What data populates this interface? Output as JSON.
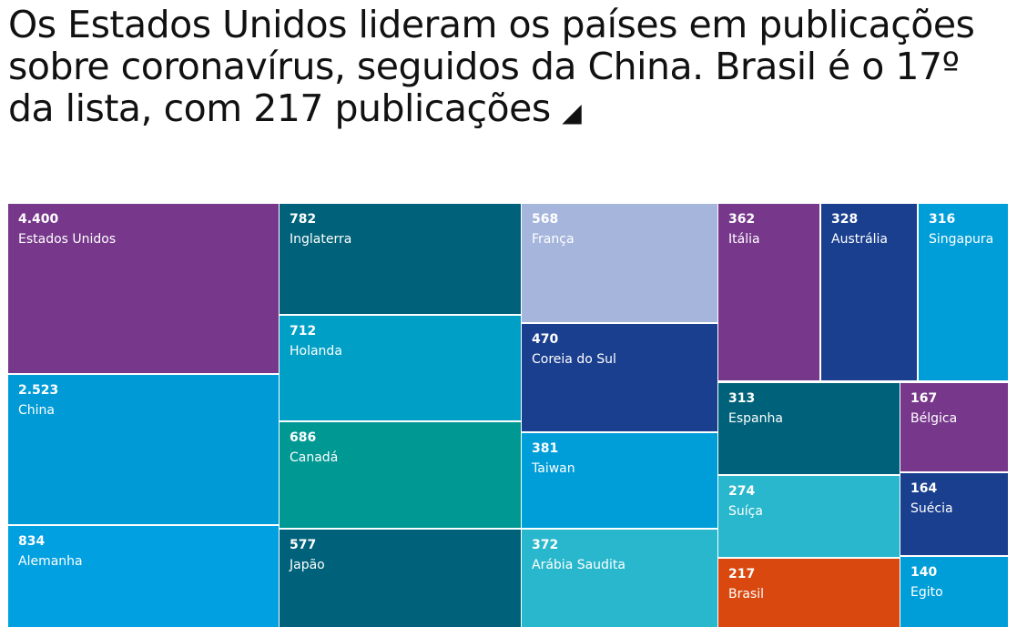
{
  "chart_data": {
    "type": "treemap",
    "title": "Os Estados Unidos lideram os países em publicações sobre coronavírus, seguidos da China. Brasil é o 17º da lista, com 217 publicações",
    "title_icon": "triangle-corner-icon",
    "items": [
      {
        "name": "Estados Unidos",
        "label": "4.400",
        "value": 4400,
        "color": "#77378b"
      },
      {
        "name": "China",
        "label": "2.523",
        "value": 2523,
        "color": "#009bd6"
      },
      {
        "name": "Alemanha",
        "label": "834",
        "value": 834,
        "color": "#00a0e1"
      },
      {
        "name": "Inglaterra",
        "label": "782",
        "value": 782,
        "color": "#00627a"
      },
      {
        "name": "Holanda",
        "label": "712",
        "value": 712,
        "color": "#00a0c6"
      },
      {
        "name": "Canadá",
        "label": "686",
        "value": 686,
        "color": "#009893"
      },
      {
        "name": "Japão",
        "label": "577",
        "value": 577,
        "color": "#00627a"
      },
      {
        "name": "França",
        "label": "568",
        "value": 568,
        "color": "#a6b5dc"
      },
      {
        "name": "Coreia do Sul",
        "label": "470",
        "value": 470,
        "color": "#1a3f8f"
      },
      {
        "name": "Taiwan",
        "label": "381",
        "value": 381,
        "color": "#009ed9"
      },
      {
        "name": "Arábia Saudita",
        "label": "372",
        "value": 372,
        "color": "#28b7cc"
      },
      {
        "name": "Itália",
        "label": "362",
        "value": 362,
        "color": "#77378b"
      },
      {
        "name": "Austrália",
        "label": "328",
        "value": 328,
        "color": "#1a3f8f"
      },
      {
        "name": "Singapura",
        "label": "316",
        "value": 316,
        "color": "#009ed9"
      },
      {
        "name": "Espanha",
        "label": "313",
        "value": 313,
        "color": "#00627a"
      },
      {
        "name": "Suíça",
        "label": "274",
        "value": 274,
        "color": "#28b7cc"
      },
      {
        "name": "Brasil",
        "label": "217",
        "value": 217,
        "color": "#d9480f"
      },
      {
        "name": "Bélgica",
        "label": "167",
        "value": 167,
        "color": "#77378b"
      },
      {
        "name": "Suécia",
        "label": "164",
        "value": 164,
        "color": "#1a3f8f"
      },
      {
        "name": "Egito",
        "label": "140",
        "value": 140,
        "color": "#009ed9"
      }
    ]
  }
}
